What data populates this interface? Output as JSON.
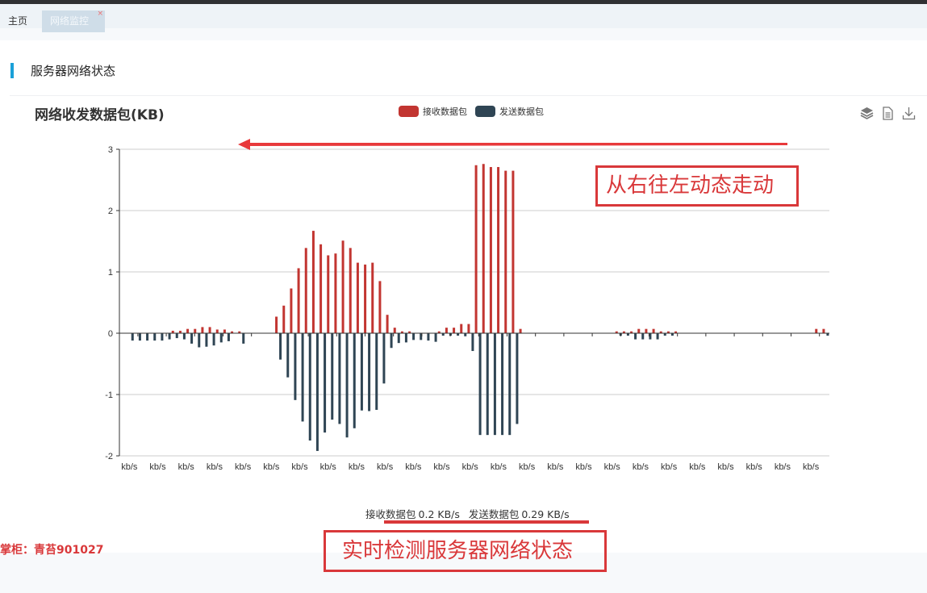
{
  "tabs": [
    {
      "label": "主页",
      "active": false
    },
    {
      "label": "网络监控",
      "active": true,
      "close": "×"
    }
  ],
  "section": {
    "title": "服务器网络状态"
  },
  "toolbox": {
    "icons": [
      "data-view-stack-icon",
      "document-icon",
      "download-icon"
    ]
  },
  "chart_data": {
    "type": "bar",
    "title": "网络收发数据包(KB)",
    "legend_position": "top-center",
    "grid": true,
    "ylim": [
      -2,
      3
    ],
    "yticks": [
      "3",
      "2",
      "1",
      "0",
      "-1",
      "-2"
    ],
    "xtick_labels": [
      "kb/s",
      "kb/s",
      "kb/s",
      "kb/s",
      "kb/s",
      "kb/s",
      "kb/s",
      "kb/s",
      "kb/s",
      "kb/s",
      "kb/s",
      "kb/s",
      "kb/s",
      "kb/s",
      "kb/s",
      "kb/s",
      "kb/s",
      "kb/s",
      "kb/s",
      "kb/s",
      "kb/s",
      "kb/s",
      "kb/s",
      "kb/s",
      "kb/s"
    ],
    "series": [
      {
        "name": "接收数据包",
        "color": "#c23531",
        "values": [
          0,
          0,
          0,
          0,
          0,
          0,
          0,
          0.04,
          0.04,
          0.07,
          0.07,
          0.1,
          0.1,
          0.06,
          0.06,
          0.03,
          0.03,
          0,
          0,
          0,
          0,
          0.27,
          0.45,
          0.73,
          1.06,
          1.39,
          1.67,
          1.45,
          1.27,
          1.3,
          1.51,
          1.39,
          1.15,
          1.12,
          1.15,
          0.85,
          0.3,
          0.09,
          0.03,
          0.03,
          0,
          0,
          0,
          0.03,
          0.09,
          0.09,
          0.15,
          0.15,
          2.74,
          2.76,
          2.71,
          2.71,
          2.65,
          2.65,
          0.07,
          0,
          0,
          0,
          0,
          0,
          0,
          0,
          0,
          0,
          0,
          0,
          0,
          0.03,
          0.03,
          0.03,
          0.07,
          0.07,
          0.07,
          0.03,
          0.03,
          0.03,
          0,
          0,
          0,
          0,
          0,
          0,
          0,
          0,
          0,
          0,
          0,
          0,
          0,
          0,
          0,
          0,
          0,
          0,
          0.07,
          0.07
        ]
      },
      {
        "name": "发送数据包",
        "color": "#2f4554",
        "values": [
          0,
          -0.12,
          -0.12,
          -0.12,
          -0.12,
          -0.12,
          -0.1,
          -0.08,
          -0.1,
          -0.17,
          -0.23,
          -0.22,
          -0.2,
          -0.15,
          -0.13,
          0,
          -0.17,
          0,
          0,
          0,
          0,
          -0.43,
          -0.72,
          -1.09,
          -1.44,
          -1.75,
          -1.92,
          -1.62,
          -1.41,
          -1.48,
          -1.7,
          -1.55,
          -1.26,
          -1.27,
          -1.25,
          -0.82,
          -0.24,
          -0.16,
          -0.15,
          -0.11,
          -0.11,
          -0.12,
          -0.14,
          -0.04,
          -0.04,
          -0.04,
          -0.05,
          -0.29,
          -1.66,
          -1.66,
          -1.66,
          -1.66,
          -1.66,
          -1.48,
          0,
          0,
          0,
          0,
          0,
          0,
          0,
          0,
          0,
          0,
          0,
          0,
          0,
          -0.04,
          -0.04,
          -0.1,
          -0.1,
          -0.1,
          -0.1,
          -0.04,
          -0.04,
          0,
          0,
          0,
          0,
          0,
          0,
          0,
          0,
          0,
          0,
          0,
          0,
          0,
          0,
          0,
          0,
          0,
          0,
          0,
          0,
          -0.04
        ]
      }
    ]
  },
  "status": {
    "recv_label": "接收数据包",
    "recv_value": "0.2 KB/s",
    "send_label": "发送数据包",
    "send_value": "0.29 KB/s"
  },
  "annotations": {
    "arrow_note": "从右往左动态走动",
    "status_note": "实时检测服务器网络状态",
    "watermark": "掌柜：青苔901027",
    "color": "#d9383a"
  }
}
